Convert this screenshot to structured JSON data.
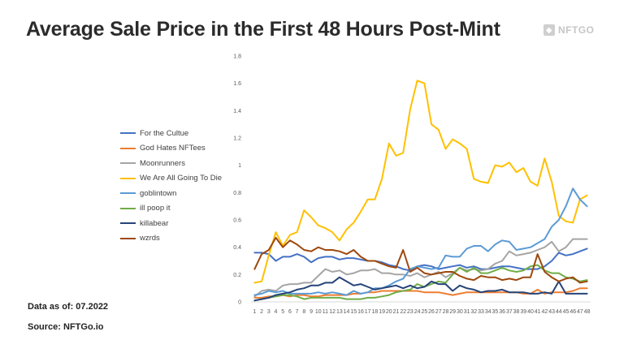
{
  "header": {
    "title": "Average Sale Price in the First 48 Hours Post-Mint",
    "brand": "NFTGO"
  },
  "footer": {
    "data_as_of": "Data as of: 07.2022",
    "source": "Source: NFTGo.io"
  },
  "chart_data": {
    "type": "line",
    "title": "Average Sale Price in the First 48 Hours Post-Mint",
    "xlabel": "",
    "ylabel": "",
    "x": [
      1,
      2,
      3,
      4,
      5,
      6,
      7,
      8,
      9,
      10,
      11,
      12,
      13,
      14,
      15,
      16,
      17,
      18,
      19,
      20,
      21,
      22,
      23,
      24,
      25,
      26,
      27,
      28,
      29,
      30,
      31,
      32,
      33,
      34,
      35,
      36,
      37,
      38,
      39,
      40,
      41,
      42,
      43,
      44,
      45,
      46,
      47,
      48
    ],
    "xtick_labels": [
      "1",
      "2",
      "3",
      "4",
      "5",
      "6",
      "7",
      "8",
      "9",
      "10",
      "11",
      "12",
      "13",
      "14",
      "15",
      "16",
      "17",
      "18",
      "19",
      "20",
      "21",
      "22",
      "23",
      "24",
      "25",
      "26",
      "27",
      "28",
      "29",
      "30",
      "31",
      "32",
      "33",
      "34",
      "35",
      "36",
      "37",
      "38",
      "39",
      "40",
      "41",
      "42",
      "43",
      "44",
      "45",
      "46",
      "47",
      "48"
    ],
    "ylim": [
      0,
      1.8
    ],
    "yticks": [
      0,
      0.2,
      0.4,
      0.6,
      0.8,
      1,
      1.2,
      1.4,
      1.6,
      1.8
    ],
    "ytick_labels": [
      "0",
      "0.2",
      "0.4",
      "0.6",
      "0.8",
      "1",
      "1.2",
      "1.4",
      "1.6",
      "1.8"
    ],
    "grid": false,
    "legend_position": "left",
    "series": [
      {
        "name": "For the Cultue",
        "color": "#4472C4",
        "values": [
          0.36,
          0.36,
          0.35,
          0.3,
          0.33,
          0.33,
          0.35,
          0.33,
          0.29,
          0.32,
          0.33,
          0.33,
          0.31,
          0.32,
          0.32,
          0.31,
          0.3,
          0.3,
          0.29,
          0.27,
          0.26,
          0.24,
          0.23,
          0.26,
          0.27,
          0.26,
          0.24,
          0.25,
          0.26,
          0.27,
          0.25,
          0.26,
          0.24,
          0.24,
          0.25,
          0.26,
          0.26,
          0.25,
          0.24,
          0.24,
          0.24,
          0.26,
          0.3,
          0.36,
          0.34,
          0.35,
          0.37,
          0.39
        ]
      },
      {
        "name": "God Hates NFTees",
        "color": "#ED7D31",
        "values": [
          0.03,
          0.03,
          0.04,
          0.04,
          0.05,
          0.04,
          0.05,
          0.05,
          0.04,
          0.04,
          0.05,
          0.05,
          0.05,
          0.05,
          0.06,
          0.06,
          0.07,
          0.07,
          0.08,
          0.08,
          0.08,
          0.08,
          0.08,
          0.08,
          0.07,
          0.07,
          0.07,
          0.06,
          0.05,
          0.06,
          0.07,
          0.07,
          0.07,
          0.07,
          0.07,
          0.07,
          0.07,
          0.07,
          0.06,
          0.06,
          0.09,
          0.06,
          0.07,
          0.07,
          0.07,
          0.08,
          0.1,
          0.1
        ]
      },
      {
        "name": "Moonrunners",
        "color": "#A5A5A5",
        "values": [
          0.04,
          0.08,
          0.09,
          0.08,
          0.12,
          0.13,
          0.13,
          0.14,
          0.14,
          0.19,
          0.24,
          0.22,
          0.23,
          0.2,
          0.21,
          0.23,
          0.23,
          0.24,
          0.21,
          0.21,
          0.2,
          0.2,
          0.19,
          0.21,
          0.18,
          0.2,
          0.22,
          0.18,
          0.21,
          0.25,
          0.23,
          0.24,
          0.23,
          0.24,
          0.28,
          0.3,
          0.37,
          0.34,
          0.35,
          0.36,
          0.38,
          0.4,
          0.44,
          0.37,
          0.4,
          0.46,
          0.46,
          0.46
        ]
      },
      {
        "name": "We Are All Going To Die",
        "color": "#FFC000",
        "values": [
          0.14,
          0.15,
          0.34,
          0.51,
          0.41,
          0.49,
          0.51,
          0.67,
          0.62,
          0.56,
          0.54,
          0.51,
          0.45,
          0.53,
          0.58,
          0.66,
          0.75,
          0.75,
          0.9,
          1.16,
          1.07,
          1.09,
          1.41,
          1.62,
          1.6,
          1.3,
          1.26,
          1.12,
          1.19,
          1.16,
          1.12,
          0.9,
          0.88,
          0.87,
          1.0,
          0.99,
          1.02,
          0.95,
          0.98,
          0.88,
          0.85,
          1.05,
          0.88,
          0.63,
          0.59,
          0.58,
          0.75,
          0.78
        ]
      },
      {
        "name": "goblintown",
        "color": "#5B9BD5",
        "values": [
          0.05,
          0.06,
          0.08,
          0.07,
          0.08,
          0.06,
          0.06,
          0.06,
          0.06,
          0.07,
          0.06,
          0.07,
          0.06,
          0.05,
          0.08,
          0.06,
          0.07,
          0.1,
          0.1,
          0.12,
          0.15,
          0.17,
          0.24,
          0.26,
          0.25,
          0.24,
          0.25,
          0.34,
          0.33,
          0.33,
          0.39,
          0.41,
          0.41,
          0.37,
          0.42,
          0.45,
          0.44,
          0.38,
          0.39,
          0.4,
          0.43,
          0.46,
          0.55,
          0.6,
          0.7,
          0.83,
          0.75,
          0.7
        ]
      },
      {
        "name": "ill poop it",
        "color": "#70AD47",
        "values": [
          0.01,
          0.02,
          0.03,
          0.04,
          0.05,
          0.05,
          0.04,
          0.02,
          0.03,
          0.03,
          0.03,
          0.03,
          0.03,
          0.02,
          0.02,
          0.02,
          0.03,
          0.03,
          0.04,
          0.05,
          0.07,
          0.08,
          0.09,
          0.13,
          0.11,
          0.13,
          0.15,
          0.14,
          0.2,
          0.25,
          0.22,
          0.25,
          0.21,
          0.21,
          0.23,
          0.25,
          0.23,
          0.22,
          0.23,
          0.26,
          0.27,
          0.23,
          0.21,
          0.21,
          0.18,
          0.17,
          0.15,
          0.16
        ]
      },
      {
        "name": "killabear",
        "color": "#264478",
        "values": [
          0.01,
          0.02,
          0.03,
          0.05,
          0.06,
          0.07,
          0.09,
          0.1,
          0.12,
          0.12,
          0.14,
          0.14,
          0.18,
          0.15,
          0.12,
          0.13,
          0.11,
          0.09,
          0.1,
          0.11,
          0.12,
          0.1,
          0.12,
          0.1,
          0.11,
          0.15,
          0.13,
          0.13,
          0.08,
          0.12,
          0.1,
          0.09,
          0.07,
          0.08,
          0.08,
          0.09,
          0.07,
          0.07,
          0.07,
          0.06,
          0.06,
          0.07,
          0.06,
          0.15,
          0.06,
          0.06,
          0.06,
          0.06
        ]
      },
      {
        "name": "wzrds",
        "color": "#9E480E",
        "values": [
          0.24,
          0.35,
          0.38,
          0.47,
          0.4,
          0.45,
          0.42,
          0.38,
          0.37,
          0.4,
          0.38,
          0.38,
          0.37,
          0.35,
          0.38,
          0.33,
          0.3,
          0.3,
          0.28,
          0.26,
          0.25,
          0.38,
          0.22,
          0.25,
          0.21,
          0.2,
          0.21,
          0.22,
          0.22,
          0.19,
          0.17,
          0.16,
          0.19,
          0.18,
          0.18,
          0.16,
          0.17,
          0.16,
          0.18,
          0.18,
          0.35,
          0.22,
          0.18,
          0.15,
          0.17,
          0.18,
          0.14,
          0.15
        ]
      }
    ]
  }
}
